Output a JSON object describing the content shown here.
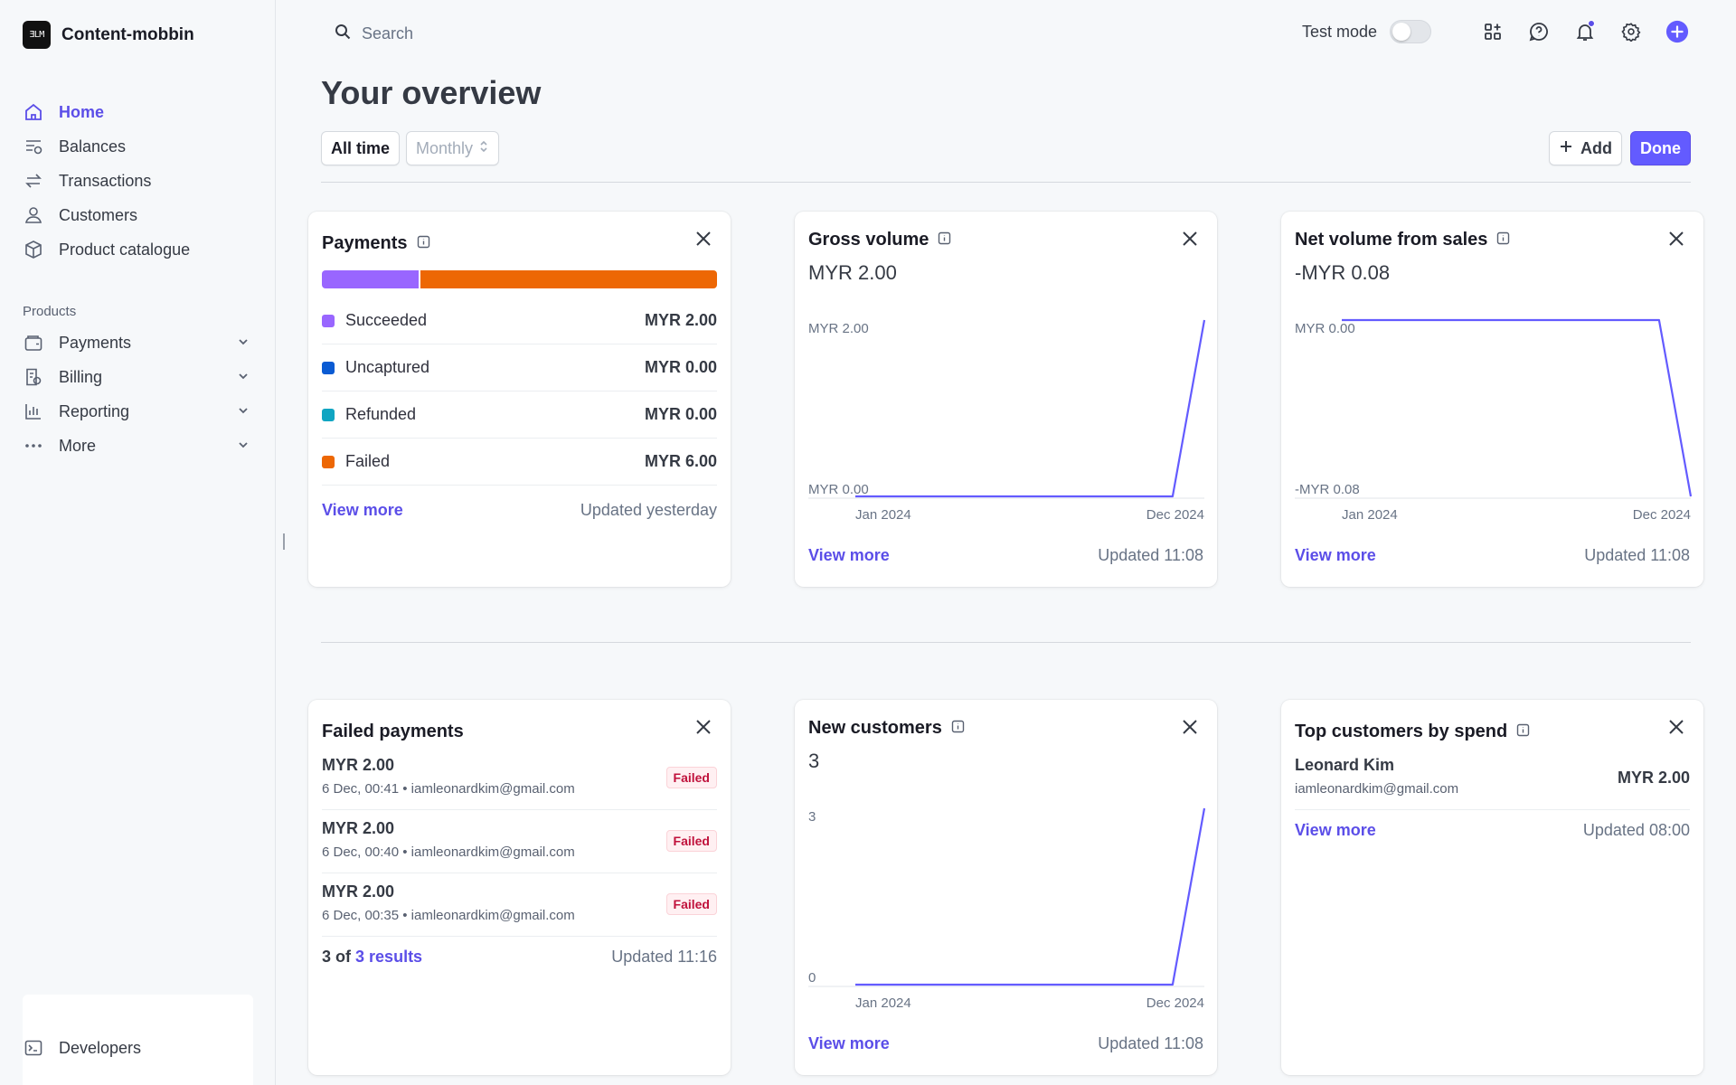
{
  "brand": {
    "name": "Content-mobbin",
    "logo_text": "ƎLM"
  },
  "sidebar": {
    "main": [
      {
        "label": "Home",
        "icon": "home-icon",
        "active": true
      },
      {
        "label": "Balances",
        "icon": "balances-icon"
      },
      {
        "label": "Transactions",
        "icon": "transactions-icon"
      },
      {
        "label": "Customers",
        "icon": "customers-icon"
      },
      {
        "label": "Product catalogue",
        "icon": "product-catalogue-icon"
      }
    ],
    "section_label": "Products",
    "products": [
      {
        "label": "Payments",
        "icon": "wallet-icon"
      },
      {
        "label": "Billing",
        "icon": "billing-icon"
      },
      {
        "label": "Reporting",
        "icon": "reporting-icon"
      },
      {
        "label": "More",
        "icon": "more-icon"
      }
    ],
    "developers": "Developers"
  },
  "topbar": {
    "search_placeholder": "Search",
    "test_mode": "Test mode",
    "test_mode_on": false
  },
  "header": {
    "title": "Your overview",
    "all_time": "All time",
    "monthly": "Monthly",
    "add": "Add",
    "done": "Done"
  },
  "payments": {
    "title": "Payments",
    "bar": {
      "succeeded_fraction": 0.25,
      "failed_fraction": 0.75
    },
    "rows": [
      {
        "label": "Succeeded",
        "amount": "MYR 2.00",
        "color": "#9966ff"
      },
      {
        "label": "Uncaptured",
        "amount": "MYR 0.00",
        "color": "#0a5bd3"
      },
      {
        "label": "Refunded",
        "amount": "MYR 0.00",
        "color": "#10a5c2"
      },
      {
        "label": "Failed",
        "amount": "MYR 6.00",
        "color": "#ed6704"
      }
    ],
    "view_more": "View more",
    "updated": "Updated yesterday"
  },
  "gross_volume": {
    "title": "Gross volume",
    "value": "MYR 2.00",
    "view_more": "View more",
    "updated": "Updated 11:08"
  },
  "net_volume": {
    "title": "Net volume from sales",
    "value": "-MYR 0.08",
    "view_more": "View more",
    "updated": "Updated 11:08"
  },
  "failed_payments": {
    "title": "Failed payments",
    "items": [
      {
        "amount": "MYR 2.00",
        "meta": "6 Dec, 00:41 • iamleonardkim@gmail.com",
        "status": "Failed"
      },
      {
        "amount": "MYR 2.00",
        "meta": "6 Dec, 00:40 • iamleonardkim@gmail.com",
        "status": "Failed"
      },
      {
        "amount": "MYR 2.00",
        "meta": "6 Dec, 00:35 • iamleonardkim@gmail.com",
        "status": "Failed"
      }
    ],
    "results_prefix": "3 of",
    "results_link": "3 results",
    "updated": "Updated 11:16"
  },
  "new_customers": {
    "title": "New customers",
    "value": "3",
    "view_more": "View more",
    "updated": "Updated 11:08"
  },
  "top_customers": {
    "title": "Top customers by spend",
    "items": [
      {
        "name": "Leonard Kim",
        "email": "iamleonardkim@gmail.com",
        "amount": "MYR 2.00"
      }
    ],
    "view_more": "View more",
    "updated": "Updated 08:00"
  },
  "chart_data": [
    {
      "type": "line",
      "title": "Gross volume",
      "x": [
        "Jan 2024",
        "Feb 2024",
        "Mar 2024",
        "Apr 2024",
        "May 2024",
        "Jun 2024",
        "Jul 2024",
        "Aug 2024",
        "Sep 2024",
        "Oct 2024",
        "Nov 2024",
        "Dec 2024"
      ],
      "values": [
        0,
        0,
        0,
        0,
        0,
        0,
        0,
        0,
        0,
        0,
        0,
        2.0
      ],
      "x_tick_labels": [
        "Jan 2024",
        "Dec 2024"
      ],
      "y_tick_labels": [
        "MYR 2.00",
        "MYR 0.00"
      ],
      "ylim": [
        0,
        2.0
      ],
      "color": "#635bff"
    },
    {
      "type": "line",
      "title": "Net volume from sales",
      "x": [
        "Jan 2024",
        "Feb 2024",
        "Mar 2024",
        "Apr 2024",
        "May 2024",
        "Jun 2024",
        "Jul 2024",
        "Aug 2024",
        "Sep 2024",
        "Oct 2024",
        "Nov 2024",
        "Dec 2024"
      ],
      "values": [
        0,
        0,
        0,
        0,
        0,
        0,
        0,
        0,
        0,
        0,
        0,
        -0.08
      ],
      "x_tick_labels": [
        "Jan 2024",
        "Dec 2024"
      ],
      "y_tick_labels": [
        "MYR 0.00",
        "-MYR 0.08"
      ],
      "ylim": [
        -0.08,
        0
      ],
      "color": "#635bff"
    },
    {
      "type": "line",
      "title": "New customers",
      "x": [
        "Jan 2024",
        "Feb 2024",
        "Mar 2024",
        "Apr 2024",
        "May 2024",
        "Jun 2024",
        "Jul 2024",
        "Aug 2024",
        "Sep 2024",
        "Oct 2024",
        "Nov 2024",
        "Dec 2024"
      ],
      "values": [
        0,
        0,
        0,
        0,
        0,
        0,
        0,
        0,
        0,
        0,
        0,
        3
      ],
      "x_tick_labels": [
        "Jan 2024",
        "Dec 2024"
      ],
      "y_tick_labels": [
        "3",
        "0"
      ],
      "ylim": [
        0,
        3
      ],
      "color": "#635bff"
    }
  ]
}
